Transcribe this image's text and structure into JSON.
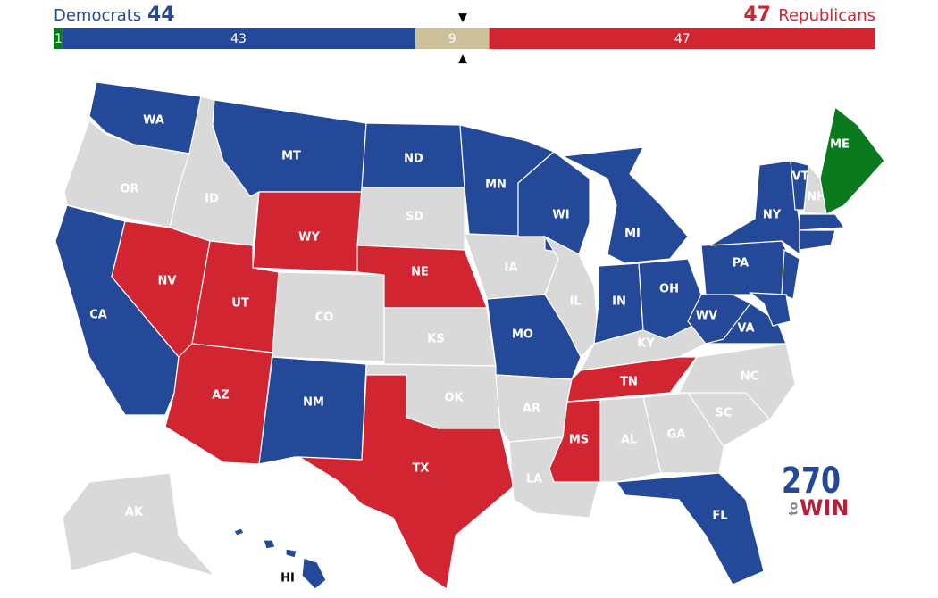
{
  "header": {
    "dem_label": "Democrats",
    "dem_count": 44,
    "rep_count": 47,
    "rep_label": "Republicans",
    "dem_color": "#244999",
    "rep_color": "#d22532"
  },
  "bar": {
    "total": 100,
    "segments": [
      {
        "value": 1,
        "color": "#0b7a1e"
      },
      {
        "value": 43,
        "color": "#244999"
      },
      {
        "value": 9,
        "color": "#cbc09a"
      },
      {
        "value": 47,
        "color": "#d22532"
      }
    ]
  },
  "map": {
    "states": [
      {
        "abbr": "WA",
        "color": "#244999"
      },
      {
        "abbr": "OR",
        "color": "#d9d9d9"
      },
      {
        "abbr": "CA",
        "color": "#244999"
      },
      {
        "abbr": "ID",
        "color": "#d9d9d9"
      },
      {
        "abbr": "NV",
        "color": "#d22532"
      },
      {
        "abbr": "MT",
        "color": "#244999"
      },
      {
        "abbr": "WY",
        "color": "#d22532"
      },
      {
        "abbr": "UT",
        "color": "#d22532"
      },
      {
        "abbr": "AZ",
        "color": "#d22532"
      },
      {
        "abbr": "CO",
        "color": "#d9d9d9"
      },
      {
        "abbr": "NM",
        "color": "#244999"
      },
      {
        "abbr": "ND",
        "color": "#244999"
      },
      {
        "abbr": "SD",
        "color": "#d9d9d9"
      },
      {
        "abbr": "NE",
        "color": "#d22532"
      },
      {
        "abbr": "KS",
        "color": "#d9d9d9"
      },
      {
        "abbr": "OK",
        "color": "#d9d9d9"
      },
      {
        "abbr": "TX",
        "color": "#d22532"
      },
      {
        "abbr": "MN",
        "color": "#244999"
      },
      {
        "abbr": "IA",
        "color": "#d9d9d9"
      },
      {
        "abbr": "MO",
        "color": "#244999"
      },
      {
        "abbr": "AR",
        "color": "#d9d9d9"
      },
      {
        "abbr": "LA",
        "color": "#d9d9d9"
      },
      {
        "abbr": "WI",
        "color": "#244999"
      },
      {
        "abbr": "IL",
        "color": "#d9d9d9"
      },
      {
        "abbr": "MI",
        "color": "#244999"
      },
      {
        "abbr": "IN",
        "color": "#244999"
      },
      {
        "abbr": "OH",
        "color": "#244999"
      },
      {
        "abbr": "KY",
        "color": "#d9d9d9"
      },
      {
        "abbr": "TN",
        "color": "#d22532"
      },
      {
        "abbr": "MS",
        "color": "#d22532"
      },
      {
        "abbr": "AL",
        "color": "#d9d9d9"
      },
      {
        "abbr": "GA",
        "color": "#d9d9d9"
      },
      {
        "abbr": "FL",
        "color": "#244999"
      },
      {
        "abbr": "SC",
        "color": "#d9d9d9"
      },
      {
        "abbr": "NC",
        "color": "#d9d9d9"
      },
      {
        "abbr": "VA",
        "color": "#244999"
      },
      {
        "abbr": "WV",
        "color": "#244999"
      },
      {
        "abbr": "PA",
        "color": "#244999"
      },
      {
        "abbr": "NY",
        "color": "#244999"
      },
      {
        "color": "#244999"
      },
      {
        "color": "#244999"
      },
      {
        "abbr": "VT",
        "color": "#244999"
      },
      {
        "abbr": "NH",
        "color": "#d9d9d9"
      },
      {
        "abbr": "ME",
        "color": "#0b7a1e"
      },
      {
        "color": "#244999"
      },
      {
        "color": "#244999"
      },
      {
        "abbr": "AK",
        "color": "#d9d9d9"
      },
      {
        "abbr": "HI",
        "color": "#244999"
      }
    ]
  },
  "logo": {
    "number": "270",
    "to": "to",
    "win": "WIN"
  }
}
